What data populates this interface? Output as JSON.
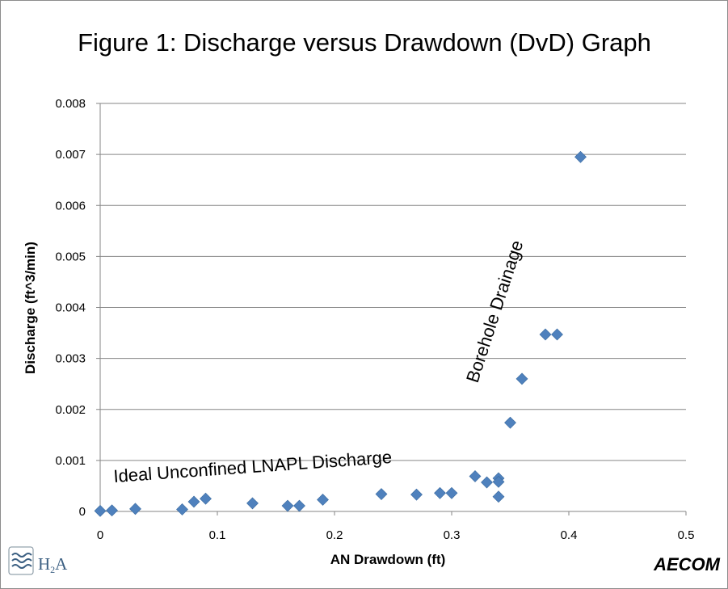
{
  "chart_data": {
    "type": "scatter",
    "title": "Figure 1:  Discharge versus Drawdown (DvD) Graph",
    "xlabel": "AN Drawdown (ft)",
    "ylabel": "Discharge (ft^3/min)",
    "xlim": [
      0,
      0.5
    ],
    "ylim": [
      0,
      0.008
    ],
    "x_ticks": [
      "0",
      "0.1",
      "0.2",
      "0.3",
      "0.4",
      "0.5"
    ],
    "y_ticks": [
      "0",
      "0.001",
      "0.002",
      "0.003",
      "0.004",
      "0.005",
      "0.006",
      "0.007",
      "0.008"
    ],
    "grid": "horizontal",
    "marker": "diamond",
    "color": "#4f81bd",
    "series": [
      {
        "points": [
          {
            "x": 0.0,
            "y": 1e-05
          },
          {
            "x": 0.01,
            "y": 2e-05
          },
          {
            "x": 0.03,
            "y": 5e-05
          },
          {
            "x": 0.07,
            "y": 4e-05
          },
          {
            "x": 0.08,
            "y": 0.00019
          },
          {
            "x": 0.09,
            "y": 0.00025
          },
          {
            "x": 0.13,
            "y": 0.00016
          },
          {
            "x": 0.16,
            "y": 0.00011
          },
          {
            "x": 0.17,
            "y": 0.00011
          },
          {
            "x": 0.19,
            "y": 0.00023
          },
          {
            "x": 0.24,
            "y": 0.00034
          },
          {
            "x": 0.27,
            "y": 0.00033
          },
          {
            "x": 0.29,
            "y": 0.00036
          },
          {
            "x": 0.3,
            "y": 0.00036
          },
          {
            "x": 0.32,
            "y": 0.00069
          },
          {
            "x": 0.33,
            "y": 0.00057
          },
          {
            "x": 0.34,
            "y": 0.00065
          },
          {
            "x": 0.34,
            "y": 0.00058
          },
          {
            "x": 0.34,
            "y": 0.00029
          },
          {
            "x": 0.35,
            "y": 0.00174
          },
          {
            "x": 0.36,
            "y": 0.0026
          },
          {
            "x": 0.38,
            "y": 0.00347
          },
          {
            "x": 0.39,
            "y": 0.00347
          },
          {
            "x": 0.41,
            "y": 0.00695
          }
        ]
      }
    ],
    "annotations": [
      "Ideal Unconfined LNAPL Discharge",
      "Borehole Drainage"
    ]
  },
  "logos": {
    "left": {
      "text_main": "H",
      "text_sub": "2",
      "text_tail": "A"
    },
    "right": {
      "text": "AECOM"
    }
  }
}
